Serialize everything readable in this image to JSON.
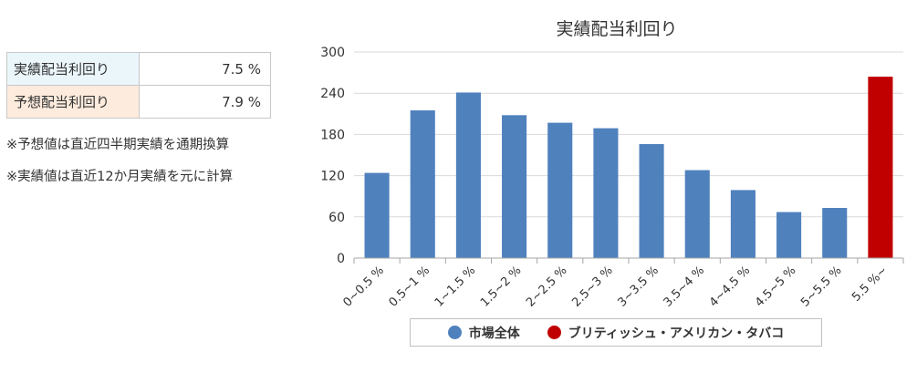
{
  "yield_table": {
    "rows": [
      {
        "label": "実績配当利回り",
        "value": "7.5 %",
        "bg": "#eaf6fa"
      },
      {
        "label": "予想配当利回り",
        "value": "7.9 %",
        "bg": "#fdebdd"
      }
    ]
  },
  "notes": [
    "※予想値は直近四半期実績を通期換算",
    "※実績値は直近12か月実績を元に計算"
  ],
  "chart_data": {
    "type": "bar",
    "title": "実績配当利回り",
    "xlabel": "",
    "ylabel": "",
    "categories": [
      "0~0.5 %",
      "0.5~1 %",
      "1~1.5 %",
      "1.5~2 %",
      "2~2.5 %",
      "2.5~3 %",
      "3~3.5 %",
      "3.5~4 %",
      "4~4.5 %",
      "4.5~5 %",
      "5~5.5 %",
      "5.5 %~"
    ],
    "values": [
      124,
      215,
      241,
      208,
      197,
      189,
      166,
      128,
      99,
      67,
      73,
      264
    ],
    "highlight_index": 11,
    "ylim": [
      0,
      300
    ],
    "yticks": [
      0,
      60,
      120,
      180,
      240,
      300
    ],
    "grid": true,
    "legend_position": "bottom",
    "colors": {
      "market": "#4f81bd",
      "bat": "#c00000"
    },
    "legend": [
      {
        "name": "市場全体",
        "color": "#4f81bd"
      },
      {
        "name": "ブリティッシュ・アメリカン・タバコ",
        "color": "#c00000"
      }
    ]
  }
}
